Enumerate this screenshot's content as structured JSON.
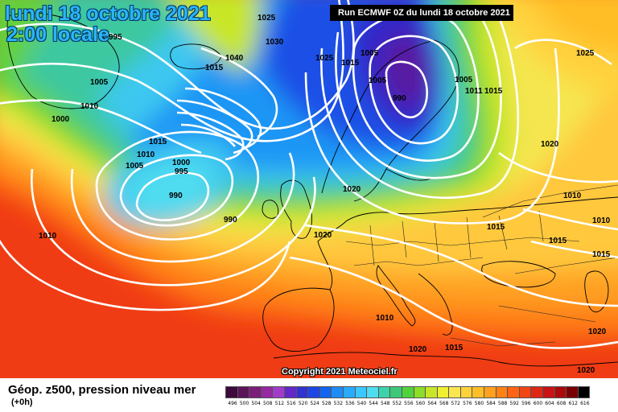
{
  "header": {
    "date_line": "lundi 18 octobre 2021",
    "time_line": "2:00 locale",
    "run_info": "Run ECMWF 0Z du lundi 18 octobre 2021"
  },
  "copyright": "Copyright 2021 Meteociel.fr",
  "footer": {
    "title": "Géop. z500, pression niveau mer",
    "subtitle": "(+0h)"
  },
  "pressure_labels": [
    {
      "text": "995"
    },
    {
      "text": "1025"
    },
    {
      "text": "1030"
    },
    {
      "text": "1040"
    },
    {
      "text": "1015"
    },
    {
      "text": "1005"
    },
    {
      "text": "1010"
    },
    {
      "text": "1000"
    },
    {
      "text": "1025"
    },
    {
      "text": "1015"
    },
    {
      "text": "1005"
    },
    {
      "text": "1005"
    },
    {
      "text": "1005"
    },
    {
      "text": "1011"
    },
    {
      "text": "1015"
    },
    {
      "text": "990"
    },
    {
      "text": "1025"
    },
    {
      "text": "1015"
    },
    {
      "text": "1010"
    },
    {
      "text": "1005"
    },
    {
      "text": "1000"
    },
    {
      "text": "995"
    },
    {
      "text": "990"
    },
    {
      "text": "990"
    },
    {
      "text": "1020"
    },
    {
      "text": "1020"
    },
    {
      "text": "1010"
    },
    {
      "text": "1015"
    },
    {
      "text": "1020"
    },
    {
      "text": "1015"
    },
    {
      "text": "1010"
    },
    {
      "text": "1015"
    },
    {
      "text": "1010"
    },
    {
      "text": "1020"
    },
    {
      "text": "1015"
    },
    {
      "text": "1020"
    },
    {
      "text": "1020"
    },
    {
      "text": "1010"
    }
  ],
  "scale": {
    "values": [
      "496",
      "500",
      "504",
      "508",
      "512",
      "516",
      "520",
      "524",
      "528",
      "532",
      "536",
      "540",
      "544",
      "548",
      "552",
      "556",
      "560",
      "564",
      "568",
      "572",
      "576",
      "580",
      "584",
      "588",
      "592",
      "596",
      "600",
      "604",
      "608",
      "612",
      "616"
    ],
    "colors": [
      "#3c0a3c",
      "#5a145a",
      "#7a1e7a",
      "#9628a0",
      "#a03cc8",
      "#6428c8",
      "#3232d2",
      "#1e46e6",
      "#1464f0",
      "#1e8cf5",
      "#28aaff",
      "#3cc8ff",
      "#50dcf0",
      "#3cd2aa",
      "#3cc878",
      "#50d23c",
      "#8cdc28",
      "#c8e628",
      "#f0f032",
      "#fae650",
      "#ffd23c",
      "#ffbe28",
      "#ffa01e",
      "#ff8214",
      "#ff6414",
      "#f04614",
      "#dc2814",
      "#c81414",
      "#aa0a0a",
      "#780000",
      "#000000"
    ]
  }
}
